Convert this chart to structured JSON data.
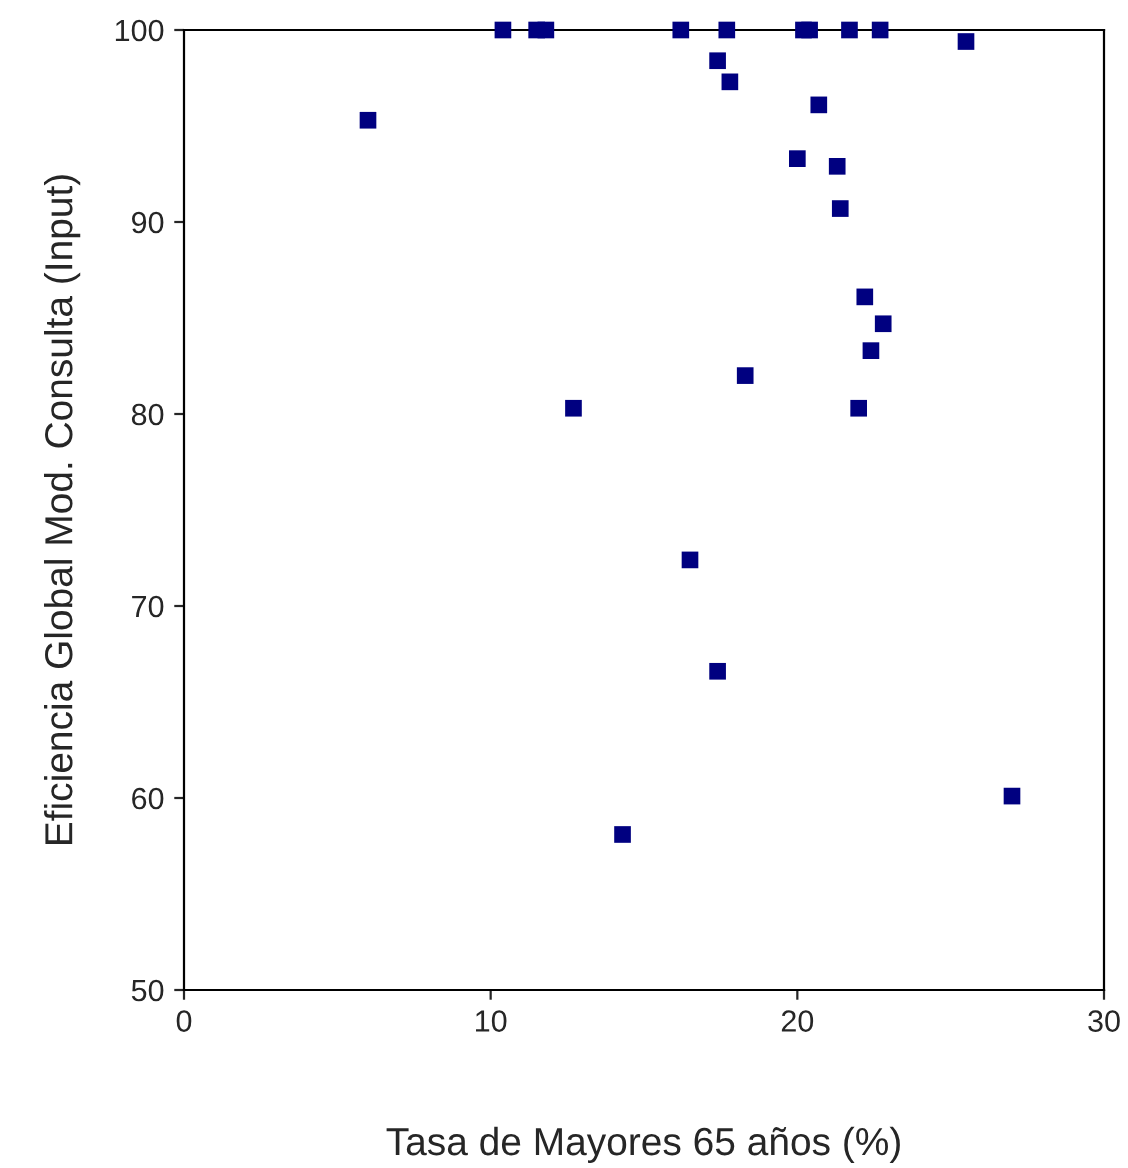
{
  "chart_data": {
    "type": "scatter",
    "xlabel": "Tasa de Mayores 65 años (%)",
    "ylabel": "Eficiencia Global Mod. Consulta (Input)",
    "x": [
      6.0,
      10.4,
      11.5,
      11.8,
      16.2,
      17.7,
      20.2,
      20.4,
      21.7,
      22.7,
      25.5,
      17.4,
      17.8,
      20.7,
      20.0,
      21.3,
      21.4,
      22.2,
      22.8,
      22.4,
      18.3,
      12.7,
      22.0,
      16.5,
      17.4,
      14.3,
      27.0
    ],
    "series": [
      {
        "color": "#000080",
        "values": [
          95.3,
          100,
          100,
          100,
          100,
          100,
          100,
          100,
          100,
          100,
          99.4,
          98.4,
          97.3,
          96.1,
          93.3,
          92.9,
          90.7,
          86.1,
          84.7,
          83.3,
          82.0,
          80.3,
          80.3,
          72.4,
          66.6,
          58.1,
          60.1
        ]
      }
    ],
    "xlim": [
      0,
      30
    ],
    "xticks": [
      0,
      10,
      20,
      30
    ],
    "ylim": [
      50,
      100
    ],
    "yticks": [
      50,
      60,
      70,
      80,
      90,
      100
    ],
    "grid": false,
    "legend": false,
    "marker": "square"
  }
}
